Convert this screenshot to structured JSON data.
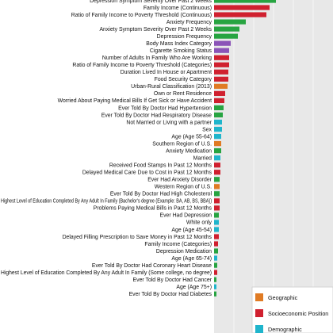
{
  "chart_data": {
    "type": "bar",
    "orientation": "horizontal",
    "colors": {
      "Geographic": "#e07b24",
      "Socioeconomic Position": "#d0202f",
      "Demographic": "#1fb5cc",
      "Health": "#27a441",
      "Behavioral": "#8b54b8",
      "background_band": "#e8e8e8"
    },
    "legend": {
      "placement": "bottom-right",
      "entries": [
        "Geographic",
        "Socioeconomic Position",
        "Demographic"
      ]
    },
    "bars": [
      {
        "label": "Depression Symptom Severity Over Past 2 Weeks",
        "value": 78,
        "group": "Health"
      },
      {
        "label": "Family Income (Continuous)",
        "value": 70,
        "group": "Socioeconomic Position"
      },
      {
        "label": "Ratio of Family Income to Poverty Threshold (Continuous)",
        "value": 66,
        "group": "Socioeconomic Position"
      },
      {
        "label": "Anxiety Frequency",
        "value": 40,
        "group": "Health"
      },
      {
        "label": "Anxiety Symptom Severity Over Past 2 Weeks",
        "value": 32,
        "group": "Health"
      },
      {
        "label": "Depression Frequency",
        "value": 30,
        "group": "Health"
      },
      {
        "label": "Body Mass Index Category",
        "value": 21,
        "group": "Behavioral"
      },
      {
        "label": "Cigarette Smoking Status",
        "value": 19,
        "group": "Behavioral"
      },
      {
        "label": "Number of Adults In Family Who Are Working",
        "value": 19,
        "group": "Socioeconomic Position"
      },
      {
        "label": "Ratio of Family Income to Poverty Threshold (Categories)",
        "value": 19,
        "group": "Socioeconomic Position"
      },
      {
        "label": "Duration Lived In House or Apartment",
        "value": 18,
        "group": "Socioeconomic Position"
      },
      {
        "label": "Food Security Category",
        "value": 18,
        "group": "Socioeconomic Position"
      },
      {
        "label": "Urban-Rural Classification (2013)",
        "value": 17,
        "group": "Geographic"
      },
      {
        "label": "Own or Rent Residence",
        "value": 14,
        "group": "Socioeconomic Position"
      },
      {
        "label": "Worried About Paying Medical Bills If Get Sick or Have Accident",
        "value": 13,
        "group": "Socioeconomic Position"
      },
      {
        "label": "Ever Told By Doctor Had Hypertension",
        "value": 12,
        "group": "Health"
      },
      {
        "label": "Ever Told By Doctor Had Respiratory Disease",
        "value": 11,
        "group": "Health"
      },
      {
        "label": "Not Married or Living with a partner",
        "value": 10,
        "group": "Demographic"
      },
      {
        "label": "Sex",
        "value": 10,
        "group": "Demographic"
      },
      {
        "label": "Age (Age 55-64)",
        "value": 9,
        "group": "Demographic"
      },
      {
        "label": "Southern Region of U.S.",
        "value": 9,
        "group": "Geographic"
      },
      {
        "label": "Anxiety Medication",
        "value": 9,
        "group": "Health"
      },
      {
        "label": "Married",
        "value": 8,
        "group": "Demographic"
      },
      {
        "label": "Received Food Stamps In Past 12 Months",
        "value": 8,
        "group": "Socioeconomic Position"
      },
      {
        "label": "Delayed Medical Care Due to Cost in Past 12 Months",
        "value": 8,
        "group": "Socioeconomic Position"
      },
      {
        "label": "Ever Had Anxiety Disorder",
        "value": 7,
        "group": "Health"
      },
      {
        "label": "Western Region of U.S.",
        "value": 7,
        "group": "Geographic"
      },
      {
        "label": "Ever Told By Doctor Had High Cholesterol",
        "value": 7,
        "group": "Health"
      },
      {
        "label": "Highest Level of Education Completed By Any Adult In Family (Bachelor's degree (Example: BA, AB, BS, BBA))",
        "value": 7,
        "group": "Socioeconomic Position"
      },
      {
        "label": "Problems Paying Medical Bills in Past 12 Months",
        "value": 7,
        "group": "Socioeconomic Position"
      },
      {
        "label": "Ever Had Depression",
        "value": 6,
        "group": "Health"
      },
      {
        "label": "White only",
        "value": 6,
        "group": "Demographic"
      },
      {
        "label": "Age (Age 45-54)",
        "value": 6,
        "group": "Demographic"
      },
      {
        "label": "Delayed Filling Prescription to Save Money in Past 12 Months",
        "value": 6,
        "group": "Socioeconomic Position"
      },
      {
        "label": "Family Income (Categories)",
        "value": 5,
        "group": "Socioeconomic Position"
      },
      {
        "label": "Depression Medication",
        "value": 5,
        "group": "Health"
      },
      {
        "label": "Age (Age 65-74)",
        "value": 4,
        "group": "Demographic"
      },
      {
        "label": "Ever Told By Doctor Had Coronary Heart Disease",
        "value": 4,
        "group": "Health"
      },
      {
        "label": "Highest Level of Education Completed By Any Adult In Family (Some college, no degree)",
        "value": 4,
        "group": "Socioeconomic Position"
      },
      {
        "label": "Ever Told By Doctor Had Cancer",
        "value": 3,
        "group": "Health"
      },
      {
        "label": "Age (Age 75+)",
        "value": 3,
        "group": "Demographic"
      },
      {
        "label": "Ever Told By Doctor Had Diabetes",
        "value": 3,
        "group": "Health"
      }
    ]
  }
}
